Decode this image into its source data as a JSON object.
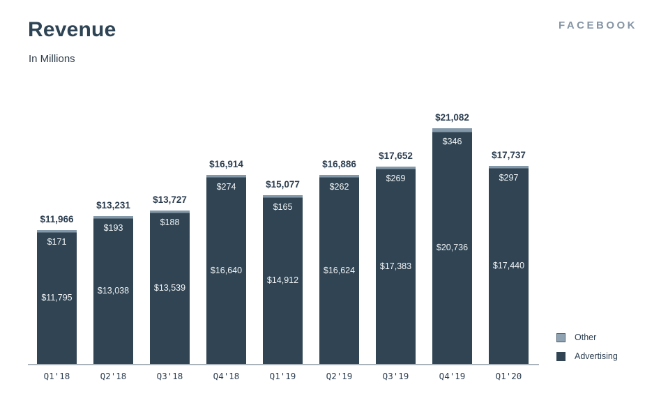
{
  "header": {
    "title": "Revenue",
    "subtitle": "In Millions",
    "brand": "FACEBOOK"
  },
  "colors": {
    "advertising": "#304453",
    "other_band": "#8399a9",
    "other_legend": "#8fa3b2",
    "label_dark": "#2c3e50",
    "inner_label": "#f2f5f7",
    "axis_line": "#aab3b9",
    "brand_text": "#8594a5"
  },
  "legend": {
    "items": [
      {
        "key": "other",
        "label": "Other"
      },
      {
        "key": "advertising",
        "label": "Advertising"
      }
    ]
  },
  "chart_data": {
    "type": "bar",
    "stacked": true,
    "title": "Revenue",
    "subtitle": "In Millions",
    "value_prefix": "$",
    "grid": false,
    "legend_position": "bottom-right",
    "categories": [
      "Q1'18",
      "Q2'18",
      "Q3'18",
      "Q4'18",
      "Q1'19",
      "Q2'19",
      "Q3'19",
      "Q4'19",
      "Q1'20"
    ],
    "series": [
      {
        "name": "Advertising",
        "values": [
          11795,
          13038,
          13539,
          16640,
          14912,
          16624,
          17383,
          20736,
          17440
        ]
      },
      {
        "name": "Other",
        "values": [
          171,
          193,
          188,
          274,
          165,
          262,
          269,
          346,
          297
        ]
      }
    ],
    "totals": [
      11966,
      13231,
      13727,
      16914,
      15077,
      16886,
      17652,
      21082,
      17737
    ],
    "ylim": [
      0,
      21082
    ]
  }
}
